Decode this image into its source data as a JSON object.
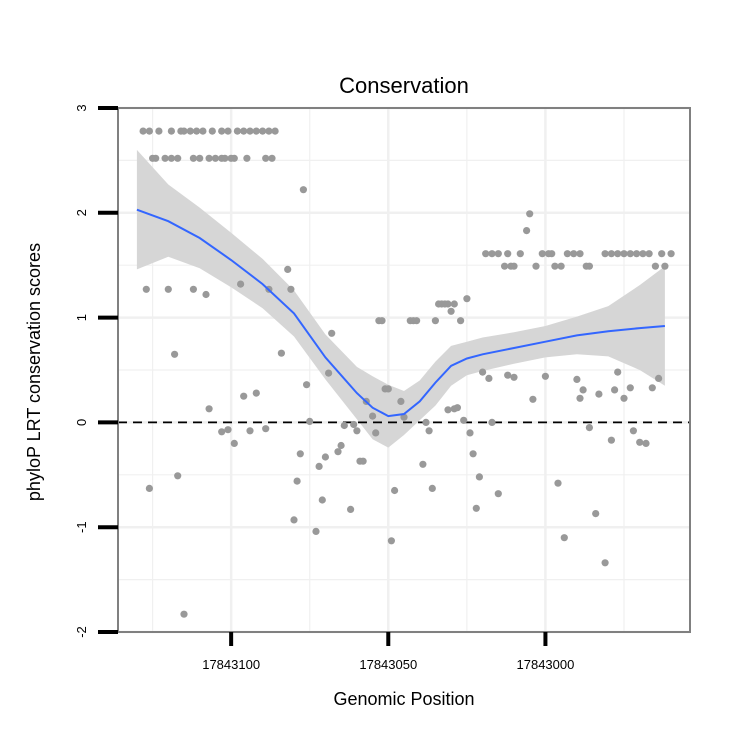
{
  "chart_data": {
    "type": "scatter",
    "title": "Conservation",
    "xlabel": "Genomic Position",
    "ylabel": "phyloP LRT conservation scores",
    "x_reversed": true,
    "xlim": [
      17843136,
      17842954
    ],
    "ylim": [
      -2,
      3
    ],
    "x_ticks": [
      17843100,
      17843050,
      17843000
    ],
    "x_tick_labels": [
      "17843100",
      "17843050",
      "17843000"
    ],
    "y_ticks": [
      -2,
      -1,
      0,
      1,
      2,
      3
    ],
    "y_tick_labels": [
      "-2",
      "-1",
      "0",
      "1",
      "2",
      "3"
    ],
    "grid": true,
    "reference_line": {
      "y": 0,
      "style": "dashed"
    },
    "colors": {
      "points": "#999999",
      "smooth": "#3366ff",
      "band": "#d6d6d6",
      "panel_border": "#808080",
      "grid": "#f0f0f0"
    },
    "points": [
      [
        17843128,
        2.78
      ],
      [
        17843126,
        2.78
      ],
      [
        17843123,
        2.78
      ],
      [
        17843119,
        2.78
      ],
      [
        17843116,
        2.78
      ],
      [
        17843115,
        2.78
      ],
      [
        17843113,
        2.78
      ],
      [
        17843111,
        2.78
      ],
      [
        17843109,
        2.78
      ],
      [
        17843106,
        2.78
      ],
      [
        17843103,
        2.78
      ],
      [
        17843101,
        2.78
      ],
      [
        17843098,
        2.78
      ],
      [
        17843096,
        2.78
      ],
      [
        17843094,
        2.78
      ],
      [
        17843092,
        2.78
      ],
      [
        17843090,
        2.78
      ],
      [
        17843088,
        2.78
      ],
      [
        17843086,
        2.78
      ],
      [
        17843125,
        2.52
      ],
      [
        17843124,
        2.52
      ],
      [
        17843121,
        2.52
      ],
      [
        17843119,
        2.52
      ],
      [
        17843117,
        2.52
      ],
      [
        17843112,
        2.52
      ],
      [
        17843110,
        2.52
      ],
      [
        17843107,
        2.52
      ],
      [
        17843105,
        2.52
      ],
      [
        17843103,
        2.52
      ],
      [
        17843102,
        2.52
      ],
      [
        17843100,
        2.52
      ],
      [
        17843099,
        2.52
      ],
      [
        17843095,
        2.52
      ],
      [
        17843089,
        2.52
      ],
      [
        17843087,
        2.52
      ],
      [
        17843127,
        1.27
      ],
      [
        17843120,
        1.27
      ],
      [
        17843112,
        1.27
      ],
      [
        17843108,
        1.22
      ],
      [
        17843097,
        1.32
      ],
      [
        17843088,
        1.27
      ],
      [
        17843082,
        1.46
      ],
      [
        17843081,
        1.27
      ],
      [
        17843084,
        0.66
      ],
      [
        17843118,
        0.65
      ],
      [
        17843077,
        2.22
      ],
      [
        17843126,
        -0.63
      ],
      [
        17843117,
        -0.51
      ],
      [
        17843115,
        -1.83
      ],
      [
        17843107,
        0.13
      ],
      [
        17843103,
        -0.09
      ],
      [
        17843101,
        -0.07
      ],
      [
        17843099,
        -0.2
      ],
      [
        17843096,
        0.25
      ],
      [
        17843094,
        -0.08
      ],
      [
        17843092,
        0.28
      ],
      [
        17843089,
        -0.06
      ],
      [
        17843080,
        -0.93
      ],
      [
        17843079,
        -0.56
      ],
      [
        17843078,
        -0.3
      ],
      [
        17843076,
        0.36
      ],
      [
        17843075,
        0.01
      ],
      [
        17843073,
        -1.04
      ],
      [
        17843072,
        -0.42
      ],
      [
        17843071,
        -0.74
      ],
      [
        17843068,
        0.85
      ],
      [
        17843066,
        -0.28
      ],
      [
        17843065,
        -0.22
      ],
      [
        17843064,
        -0.03
      ],
      [
        17843062,
        -0.83
      ],
      [
        17843061,
        -0.02
      ],
      [
        17843060,
        -0.08
      ],
      [
        17843059,
        -0.37
      ],
      [
        17843058,
        -0.37
      ],
      [
        17843069,
        0.47
      ],
      [
        17843070,
        -0.33
      ],
      [
        17843057,
        0.2
      ],
      [
        17843055,
        0.06
      ],
      [
        17843054,
        -0.1
      ],
      [
        17843053,
        0.97
      ],
      [
        17843052,
        0.97
      ],
      [
        17843051,
        0.32
      ],
      [
        17843050,
        0.32
      ],
      [
        17843049,
        -1.13
      ],
      [
        17843048,
        -0.65
      ],
      [
        17843046,
        0.2
      ],
      [
        17843045,
        0.05
      ],
      [
        17843043,
        0.97
      ],
      [
        17843042,
        0.97
      ],
      [
        17843041,
        0.97
      ],
      [
        17843039,
        -0.4
      ],
      [
        17843038,
        0.0
      ],
      [
        17843037,
        -0.08
      ],
      [
        17843036,
        -0.63
      ],
      [
        17843035,
        0.97
      ],
      [
        17843034,
        1.13
      ],
      [
        17843033,
        1.13
      ],
      [
        17843032,
        1.13
      ],
      [
        17843031,
        1.13
      ],
      [
        17843030,
        1.06
      ],
      [
        17843029,
        1.13
      ],
      [
        17843027,
        0.97
      ],
      [
        17843025,
        1.18
      ],
      [
        17843031,
        0.12
      ],
      [
        17843029,
        0.13
      ],
      [
        17843028,
        0.14
      ],
      [
        17843026,
        0.02
      ],
      [
        17843024,
        -0.1
      ],
      [
        17843023,
        -0.3
      ],
      [
        17843022,
        -0.82
      ],
      [
        17843021,
        -0.52
      ],
      [
        17843020,
        0.48
      ],
      [
        17843018,
        0.42
      ],
      [
        17843017,
        0.0
      ],
      [
        17843015,
        -0.68
      ],
      [
        17843019,
        1.61
      ],
      [
        17843017,
        1.61
      ],
      [
        17843015,
        1.61
      ],
      [
        17843013,
        1.49
      ],
      [
        17843012,
        1.61
      ],
      [
        17843011,
        1.49
      ],
      [
        17843010,
        1.49
      ],
      [
        17843008,
        1.61
      ],
      [
        17843006,
        1.83
      ],
      [
        17843005,
        1.99
      ],
      [
        17843003,
        1.49
      ],
      [
        17843001,
        1.61
      ],
      [
        17842999,
        1.61
      ],
      [
        17842998,
        1.61
      ],
      [
        17842997,
        1.49
      ],
      [
        17842995,
        1.49
      ],
      [
        17842993,
        1.61
      ],
      [
        17842991,
        1.61
      ],
      [
        17842989,
        1.61
      ],
      [
        17842987,
        1.49
      ],
      [
        17842986,
        1.49
      ],
      [
        17843012,
        0.45
      ],
      [
        17843010,
        0.43
      ],
      [
        17843004,
        0.22
      ],
      [
        17843000,
        0.44
      ],
      [
        17842996,
        -0.58
      ],
      [
        17842994,
        -1.1
      ],
      [
        17842990,
        0.41
      ],
      [
        17842989,
        0.23
      ],
      [
        17842988,
        0.31
      ],
      [
        17842986,
        -0.05
      ],
      [
        17842984,
        -0.87
      ],
      [
        17842983,
        0.27
      ],
      [
        17842981,
        -1.34
      ],
      [
        17842979,
        -0.17
      ],
      [
        17842978,
        0.31
      ],
      [
        17842977,
        0.48
      ],
      [
        17842975,
        0.23
      ],
      [
        17842973,
        0.33
      ],
      [
        17842972,
        -0.08
      ],
      [
        17842970,
        -0.19
      ],
      [
        17842968,
        -0.2
      ],
      [
        17842966,
        0.33
      ],
      [
        17842964,
        0.42
      ],
      [
        17842981,
        1.61
      ],
      [
        17842979,
        1.61
      ],
      [
        17842977,
        1.61
      ],
      [
        17842975,
        1.61
      ],
      [
        17842973,
        1.61
      ],
      [
        17842971,
        1.61
      ],
      [
        17842969,
        1.61
      ],
      [
        17842967,
        1.61
      ],
      [
        17842965,
        1.49
      ],
      [
        17842963,
        1.61
      ],
      [
        17842962,
        1.49
      ],
      [
        17842960,
        1.61
      ]
    ],
    "smooth": {
      "x": [
        17843130,
        17843120,
        17843110,
        17843100,
        17843090,
        17843080,
        17843070,
        17843060,
        17843055,
        17843050,
        17843045,
        17843040,
        17843035,
        17843030,
        17843025,
        17843020,
        17843010,
        17843000,
        17842990,
        17842980,
        17842970,
        17842962
      ],
      "y": [
        2.03,
        1.92,
        1.76,
        1.55,
        1.32,
        1.04,
        0.62,
        0.28,
        0.14,
        0.06,
        0.08,
        0.2,
        0.38,
        0.54,
        0.61,
        0.65,
        0.71,
        0.77,
        0.83,
        0.87,
        0.9,
        0.92
      ],
      "ymin": [
        1.46,
        1.58,
        1.47,
        1.29,
        1.09,
        0.82,
        0.41,
        0.03,
        -0.16,
        -0.24,
        -0.12,
        0.02,
        0.16,
        0.35,
        0.45,
        0.49,
        0.56,
        0.62,
        0.65,
        0.63,
        0.5,
        0.35
      ],
      "ymax": [
        2.6,
        2.27,
        2.05,
        1.81,
        1.56,
        1.26,
        0.84,
        0.53,
        0.44,
        0.36,
        0.3,
        0.4,
        0.58,
        0.73,
        0.77,
        0.81,
        0.86,
        0.92,
        1.01,
        1.11,
        1.31,
        1.49
      ]
    }
  }
}
